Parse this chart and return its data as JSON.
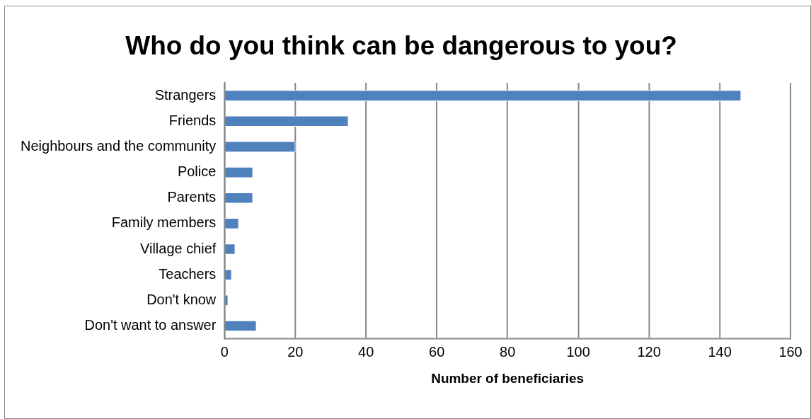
{
  "chart_data": {
    "type": "bar",
    "orientation": "horizontal",
    "title": "Who do you think can be dangerous to you?",
    "xlabel": "Number of beneficiaries",
    "categories": [
      "Strangers",
      "Friends",
      "Neighbours and the community",
      "Police",
      "Parents",
      "Family members",
      "Village chief",
      "Teachers",
      "Don't know",
      "Don't want to answer"
    ],
    "values": [
      146,
      35,
      20,
      8,
      8,
      4,
      3,
      2,
      1,
      9
    ],
    "color": "#4f81bd",
    "xlim": [
      0,
      160
    ],
    "xticks": [
      0,
      20,
      40,
      60,
      80,
      100,
      120,
      140,
      160
    ],
    "grid": "x",
    "legend": false
  }
}
